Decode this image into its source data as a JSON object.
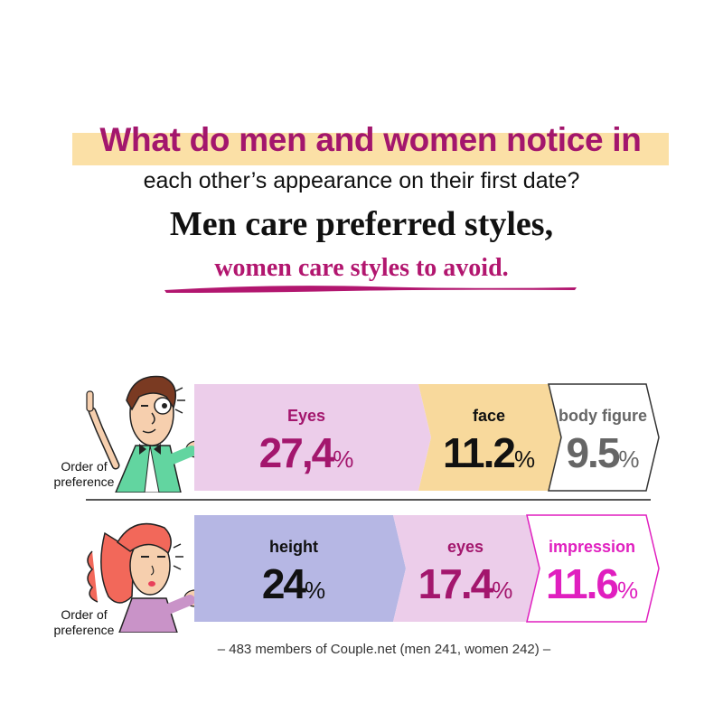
{
  "title": {
    "line1": "What do men and women notice in",
    "line2": "each other’s appearance on their first date?",
    "line3": "Men care preferred styles,",
    "line4": "women care styles to avoid."
  },
  "row_label": "Order of preference",
  "footnote": "–  483 members of Couple.net (men 241, women 242)  –",
  "colors": {
    "magenta": "#a3166d",
    "highlight": "#fbe0a6"
  },
  "chart_data": [
    {
      "type": "bar",
      "group": "men",
      "categories": [
        "Eyes",
        "face",
        "body figure"
      ],
      "values": [
        27.4,
        11.2,
        9.5
      ],
      "value_labels": [
        "27,4",
        "11.2",
        "9.5"
      ],
      "unit": "%",
      "segment_colors": [
        "#eccdea",
        "#f8d99c",
        "#ffffff"
      ],
      "label_colors": [
        "#a3166d",
        "#111111",
        "#666666"
      ]
    },
    {
      "type": "bar",
      "group": "women",
      "categories": [
        "height",
        "eyes",
        "impression"
      ],
      "values": [
        24,
        17.4,
        11.6
      ],
      "value_labels": [
        "24",
        "17.4",
        "11.6"
      ],
      "unit": "%",
      "segment_colors": [
        "#b6b7e4",
        "#eccdea",
        "#ffffff"
      ],
      "label_colors": [
        "#111111",
        "#a3166d",
        "#e01fbf"
      ]
    }
  ]
}
